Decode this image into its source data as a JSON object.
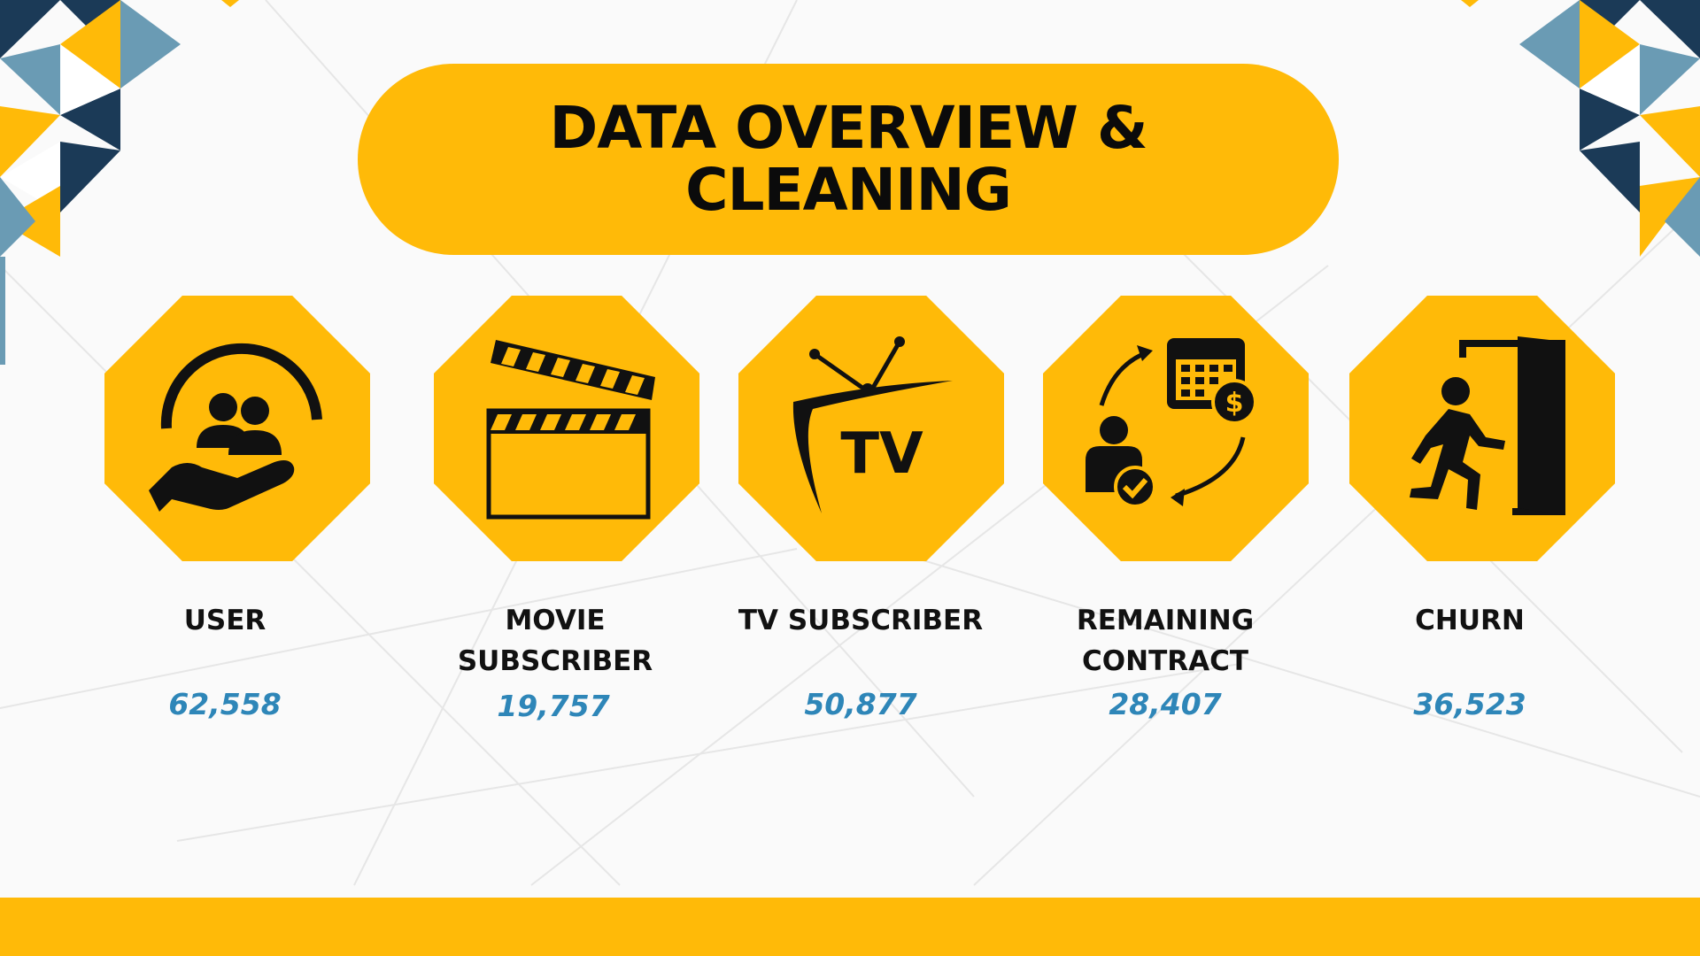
{
  "title": "DATA OVERVIEW & CLEANING",
  "colors": {
    "accent": "#FFBA08",
    "value_text": "#2E86B8",
    "dark_triangle": "#1B3A57",
    "light_triangle": "#6A9BB4"
  },
  "stats": [
    {
      "label": "USER",
      "value": "62,558",
      "icon": "hand-holding-users-icon"
    },
    {
      "label": "MOVIE SUBSCRIBER",
      "value": "19,757",
      "icon": "clapperboard-icon"
    },
    {
      "label": "TV SUBSCRIBER",
      "value": "50,877",
      "icon": "tv-icon",
      "icon_text": "TV"
    },
    {
      "label": "REMAINING CONTRACT",
      "value": "28,407",
      "icon": "contract-renewal-icon"
    },
    {
      "label": "CHURN",
      "value": "36,523",
      "icon": "exit-door-icon"
    }
  ]
}
